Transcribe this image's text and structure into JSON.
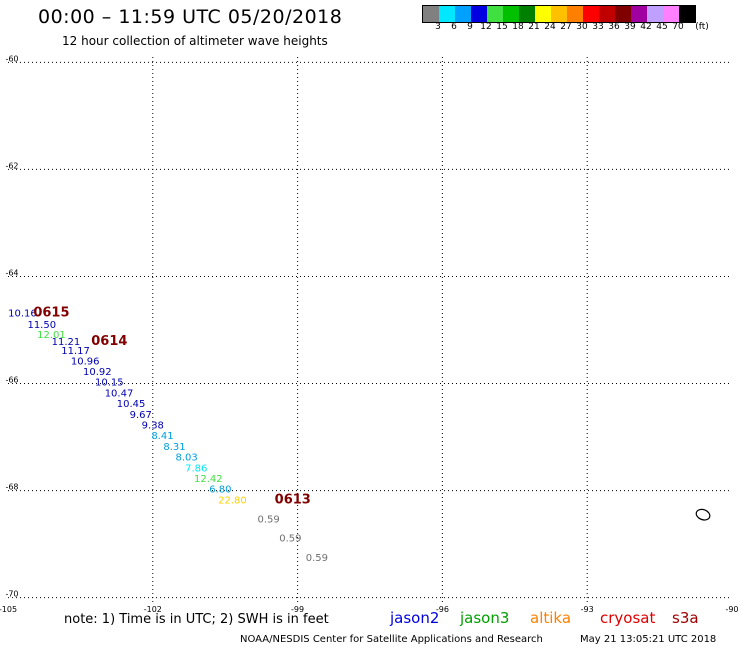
{
  "header": {
    "title": "00:00 – 11:59 UTC 05/20/2018",
    "subtitle": "12 hour collection of altimeter wave heights"
  },
  "legend": {
    "swatches": [
      {
        "color": "#808080",
        "label": "3"
      },
      {
        "color": "#00e8ff",
        "label": "6"
      },
      {
        "color": "#00a0ff",
        "label": "9"
      },
      {
        "color": "#0000e0",
        "label": "12"
      },
      {
        "color": "#40e040",
        "label": "15"
      },
      {
        "color": "#00c000",
        "label": "18"
      },
      {
        "color": "#008000",
        "label": "21"
      },
      {
        "color": "#ffff00",
        "label": "24"
      },
      {
        "color": "#ffc000",
        "label": "27"
      },
      {
        "color": "#ff8000",
        "label": "30"
      },
      {
        "color": "#ff0000",
        "label": "33"
      },
      {
        "color": "#c00000",
        "label": "36"
      },
      {
        "color": "#800000",
        "label": "39"
      },
      {
        "color": "#a000a0",
        "label": "42"
      },
      {
        "color": "#c0a0ff",
        "label": "45"
      },
      {
        "color": "#ff80ff",
        "label": "70"
      },
      {
        "color": "#000000",
        "label": ""
      }
    ],
    "unit": "(ft)"
  },
  "map": {
    "lon_ticks": [
      {
        "value": -105,
        "label": "-105"
      },
      {
        "value": -102,
        "label": "-102"
      },
      {
        "value": -99,
        "label": "-99"
      },
      {
        "value": -96,
        "label": "-96"
      },
      {
        "value": -93,
        "label": "-93"
      },
      {
        "value": -90,
        "label": "-90"
      }
    ],
    "lat_ticks": [
      {
        "value": -60,
        "label": "-60"
      },
      {
        "value": -62,
        "label": "-62"
      },
      {
        "value": -64,
        "label": "-64"
      },
      {
        "value": -66,
        "label": "-66"
      },
      {
        "value": -68,
        "label": "-68"
      },
      {
        "value": -70,
        "label": "-70"
      }
    ],
    "lon_range": [
      -105,
      -90
    ],
    "lat_range": [
      -70.1,
      -59.9
    ],
    "gridlines": "dotted"
  },
  "observations": [
    {
      "lon": -104.7,
      "lat": -64.75,
      "text": "10.16",
      "color": "#0000b0"
    },
    {
      "lon": -104.3,
      "lat": -64.96,
      "text": "11.50",
      "color": "#0000b0"
    },
    {
      "lon": -104.1,
      "lat": -65.15,
      "text": "12.01",
      "color": "#40e040"
    },
    {
      "lon": -103.8,
      "lat": -65.28,
      "text": "11.21",
      "color": "#0000b0"
    },
    {
      "lon": -103.6,
      "lat": -65.45,
      "text": "11.17",
      "color": "#0000b0"
    },
    {
      "lon": -103.4,
      "lat": -65.64,
      "text": "10.96",
      "color": "#0000b0"
    },
    {
      "lon": -103.15,
      "lat": -65.84,
      "text": "10.92",
      "color": "#0000b0"
    },
    {
      "lon": -102.9,
      "lat": -66.04,
      "text": "10.15",
      "color": "#0000b0"
    },
    {
      "lon": -102.7,
      "lat": -66.24,
      "text": "10.47",
      "color": "#0000b0"
    },
    {
      "lon": -102.45,
      "lat": -66.44,
      "text": "10.45",
      "color": "#0000b0"
    },
    {
      "lon": -102.25,
      "lat": -66.64,
      "text": "9.67",
      "color": "#0000b0"
    },
    {
      "lon": -102.0,
      "lat": -66.84,
      "text": "9.38",
      "color": "#0000b0"
    },
    {
      "lon": -101.8,
      "lat": -67.04,
      "text": "8.41",
      "color": "#00a0e0"
    },
    {
      "lon": -101.55,
      "lat": -67.24,
      "text": "8.31",
      "color": "#00a0e0"
    },
    {
      "lon": -101.3,
      "lat": -67.44,
      "text": "8.03",
      "color": "#00a0e0"
    },
    {
      "lon": -101.1,
      "lat": -67.64,
      "text": "7.86",
      "color": "#00e8ff"
    },
    {
      "lon": -100.85,
      "lat": -67.84,
      "text": "12.42",
      "color": "#40e040"
    },
    {
      "lon": -100.6,
      "lat": -68.04,
      "text": "6.80",
      "color": "#00a0e0"
    },
    {
      "lon": -100.35,
      "lat": -68.24,
      "text": "22.80",
      "color": "#ffd000"
    },
    {
      "lon": -99.6,
      "lat": -68.6,
      "text": "0.59",
      "color": "#707070"
    },
    {
      "lon": -99.15,
      "lat": -68.95,
      "text": "0.59",
      "color": "#707070"
    },
    {
      "lon": -98.6,
      "lat": -69.32,
      "text": "0.59",
      "color": "#707070"
    }
  ],
  "pass_labels": [
    {
      "lon": -104.1,
      "lat": -64.75,
      "text": "0615"
    },
    {
      "lon": -102.9,
      "lat": -65.28,
      "text": "0614"
    },
    {
      "lon": -99.1,
      "lat": -68.24,
      "text": "0613"
    }
  ],
  "island": {
    "lon": -90.6,
    "lat": -68.45
  },
  "footer": {
    "note": "note:  1) Time is in UTC;  2) SWH is in feet",
    "satellites": [
      {
        "name": "jason2",
        "color": "#0000e0"
      },
      {
        "name": "jason3",
        "color": "#00a000"
      },
      {
        "name": "altika",
        "color": "#ff8000"
      },
      {
        "name": "cryosat",
        "color": "#e00000"
      },
      {
        "name": "s3a",
        "color": "#a00000"
      }
    ],
    "credit": "NOAA/NESDIS Center for Satellite Applications and Research",
    "timestamp": "May 21 13:05:21 UTC 2018"
  }
}
